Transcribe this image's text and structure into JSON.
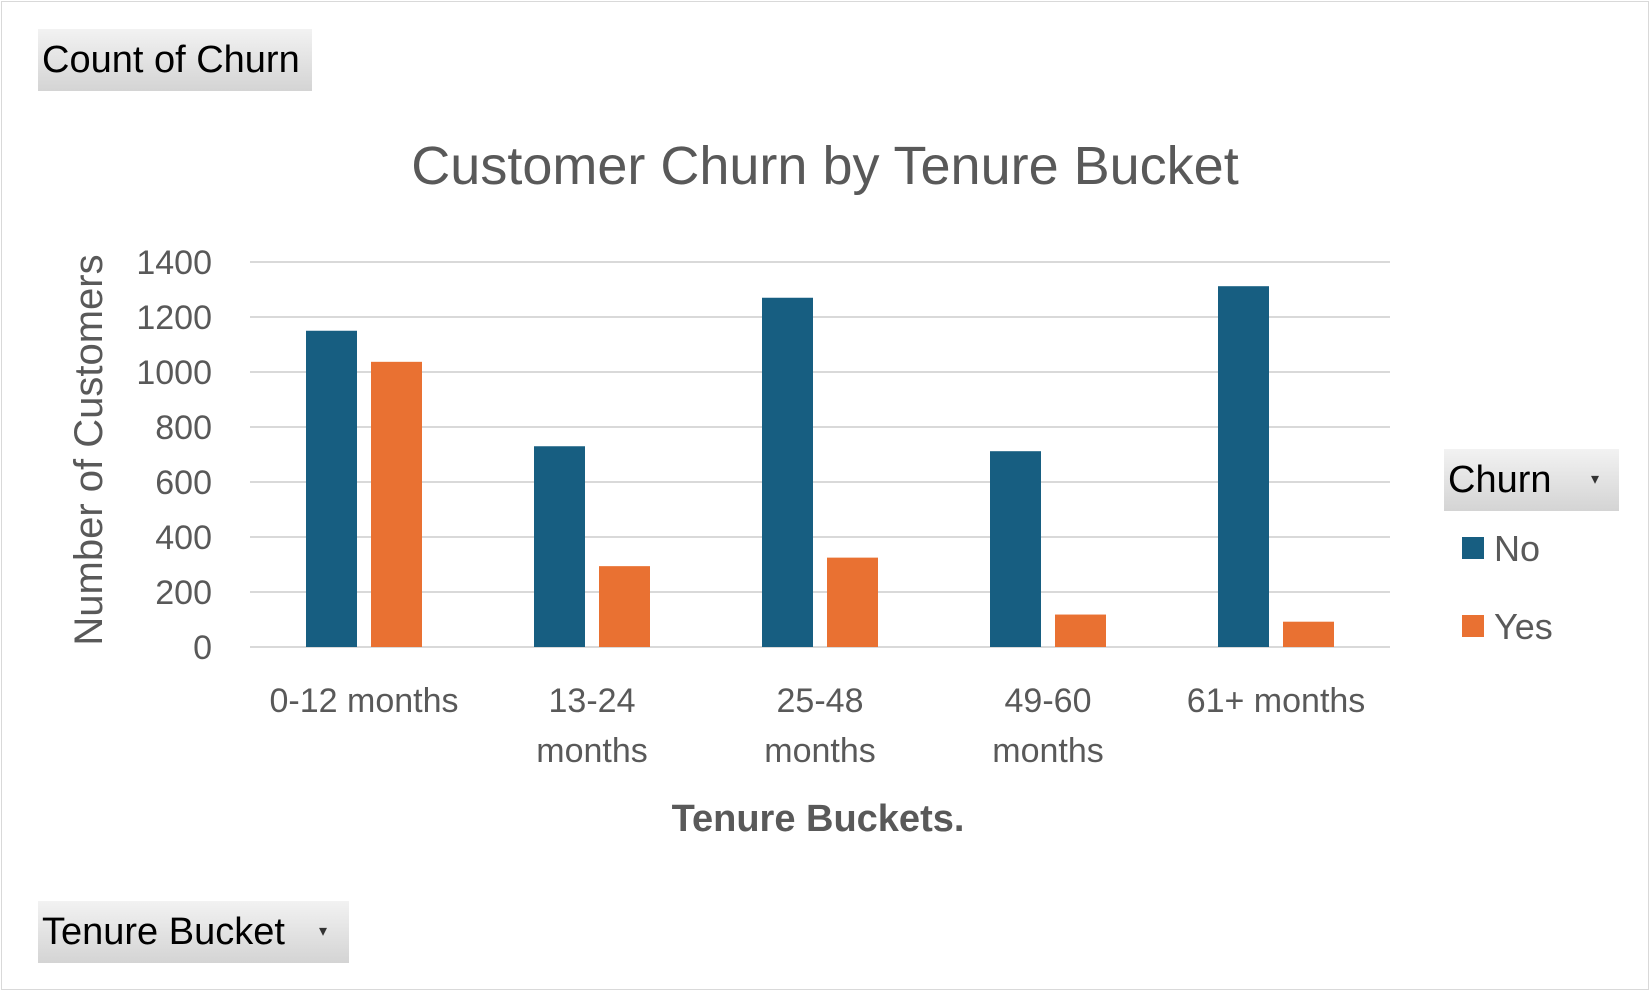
{
  "field_buttons": {
    "values_field": "Count of Churn",
    "axis_field": "Tenure Bucket",
    "legend_field": "Churn"
  },
  "colors": {
    "No": "#175e81",
    "Yes": "#e97132",
    "grid": "#d9d9d9",
    "text": "#595959"
  },
  "chart_data": {
    "type": "bar",
    "title": "Customer Churn by Tenure Bucket",
    "xlabel": "Tenure Buckets.",
    "ylabel": "Number of Customers",
    "categories": [
      [
        "0-12 months"
      ],
      [
        "13-24",
        "months"
      ],
      [
        "25-48",
        "months"
      ],
      [
        "49-60",
        "months"
      ],
      [
        "61+ months"
      ]
    ],
    "series": [
      {
        "name": "No",
        "values": [
          1150,
          730,
          1270,
          712,
          1312
        ]
      },
      {
        "name": "Yes",
        "values": [
          1037,
          294,
          325,
          118,
          92
        ]
      }
    ],
    "ylim": [
      0,
      1400
    ],
    "yticks": [
      0,
      200,
      400,
      600,
      800,
      1000,
      1200,
      1400
    ],
    "grid": true,
    "legend_position": "right"
  }
}
